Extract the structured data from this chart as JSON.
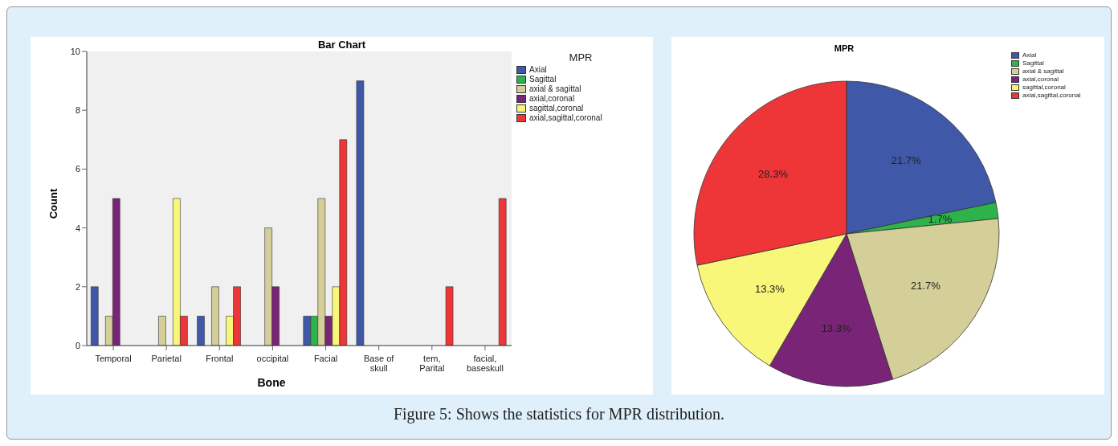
{
  "chart_data": [
    {
      "type": "bar",
      "title": "Bar Chart",
      "xlabel": "Bone",
      "ylabel": "Count",
      "legend_title": "MPR",
      "categories": [
        "Temporal",
        "Parietal",
        "Frontal",
        "occipital",
        "Facial",
        "Base of skull",
        "tem, Parital",
        "facial, baseskull"
      ],
      "series": [
        {
          "name": "Axial",
          "color": "#3f58a8",
          "values": [
            2,
            null,
            1,
            null,
            1,
            9,
            null,
            null
          ]
        },
        {
          "name": "Sagittal",
          "color": "#2db34a",
          "values": [
            null,
            null,
            null,
            null,
            1,
            null,
            null,
            null
          ]
        },
        {
          "name": "axial & sagittal",
          "color": "#d4cf98",
          "values": [
            1,
            1,
            2,
            4,
            5,
            null,
            null,
            null
          ]
        },
        {
          "name": "axial,coronal",
          "color": "#7a2477",
          "values": [
            5,
            null,
            null,
            2,
            1,
            null,
            null,
            null
          ]
        },
        {
          "name": "sagittal,coronal",
          "color": "#f8f77a",
          "values": [
            null,
            5,
            1,
            null,
            2,
            null,
            null,
            null
          ]
        },
        {
          "name": "axial,sagittal,coronal",
          "color": "#ee3537",
          "values": [
            null,
            1,
            2,
            null,
            7,
            null,
            2,
            5
          ]
        }
      ],
      "ylim": [
        0,
        10
      ],
      "yticks": [
        0,
        2,
        4,
        6,
        8,
        10
      ],
      "grid": false,
      "legend": "top right",
      "annotations": [
        "Figure 5: Shows the statistics for MPR distribution."
      ]
    },
    {
      "type": "pie",
      "title": "MPR",
      "categories": [
        "Axial",
        "Sagittal",
        "axial & sagittal",
        "axial,coronal",
        "sagittal,coronal",
        "axial,sagittal,coronal"
      ],
      "values": [
        21.7,
        1.7,
        21.7,
        13.3,
        13.3,
        28.3
      ],
      "colors": [
        "#3f58a8",
        "#2db34a",
        "#d4cf98",
        "#7a2477",
        "#f8f77a",
        "#ee3537"
      ],
      "value_labels": [
        "21.7%",
        "1.7%",
        "21.7%",
        "13.3%",
        "13.3%",
        "28.3%"
      ],
      "legend": "top right"
    }
  ]
}
